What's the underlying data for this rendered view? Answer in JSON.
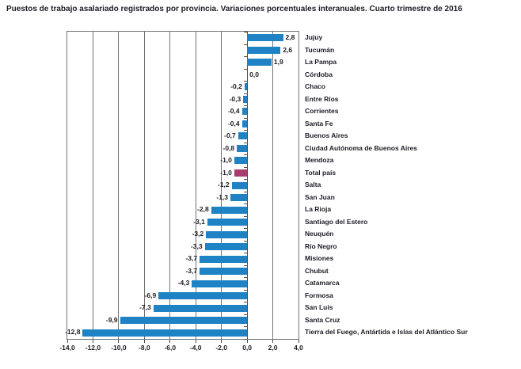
{
  "page": {
    "title": "Puestos de trabajo asalariado registrados por provincia. Variaciones porcentuales interanuales. Cuarto trimestre de 2016"
  },
  "colors": {
    "bar": "#1f82c4",
    "bar_highlight": "#a83c6e",
    "grid": "#737373",
    "axis": "#4d4d4d",
    "text": "#1c1c24"
  },
  "chart_data": {
    "type": "bar",
    "orientation": "horizontal",
    "title": "Puestos de trabajo asalariado registrados por provincia. Variaciones porcentuales interanuales. Cuarto trimestre de 2016",
    "xlabel": "",
    "ylabel": "",
    "xlim": [
      -14,
      4
    ],
    "xticks": [
      -14,
      -12,
      -10,
      -8,
      -6,
      -4,
      -2,
      0,
      2,
      4
    ],
    "xtick_labels": [
      "-14,0",
      "-12,0",
      "-10,0",
      "-8,0",
      "-6,0",
      "-4,0",
      "-2,0",
      "0,0",
      "2,0",
      "4,0"
    ],
    "grid": true,
    "legend": false,
    "categories": [
      "Jujuy",
      "Tucumán",
      "La Pampa",
      "Córdoba",
      "Chaco",
      "Entre Ríos",
      "Corrientes",
      "Santa Fe",
      "Buenos Aires",
      "Ciudad Autónoma de Buenos Aires",
      "Mendoza",
      "Total país",
      "Salta",
      "San Juan",
      "La Rioja",
      "Santiago del Estero",
      "Neuquén",
      "Río Negro",
      "Misiones",
      "Chubut",
      "Catamarca",
      "Formosa",
      "San Luis",
      "Santa Cruz",
      "Tierra del Fuego, Antártida e Islas del Atlántico Sur"
    ],
    "values": [
      2.8,
      2.6,
      1.9,
      0.0,
      -0.2,
      -0.3,
      -0.4,
      -0.4,
      -0.7,
      -0.8,
      -1.0,
      -1.0,
      -1.2,
      -1.3,
      -2.8,
      -3.1,
      -3.2,
      -3.3,
      -3.7,
      -3.7,
      -4.3,
      -6.9,
      -7.3,
      -9.9,
      -12.8
    ],
    "value_labels": [
      "2,8",
      "2,6",
      "1,9",
      "0,0",
      "-0,2",
      "-0,3",
      "-0,4",
      "-0,4",
      "-0,7",
      "-0,8",
      "-1,0",
      "-1,0",
      "-1,2",
      "-1,3",
      "-2,8",
      "-3,1",
      "-3,2",
      "-3,3",
      "-3,7",
      "-3,7",
      "-4,3",
      "-6,9",
      "-7,3",
      "-9,9",
      "-12,8"
    ],
    "highlight_index": 11,
    "highlight_category": "Total país"
  }
}
